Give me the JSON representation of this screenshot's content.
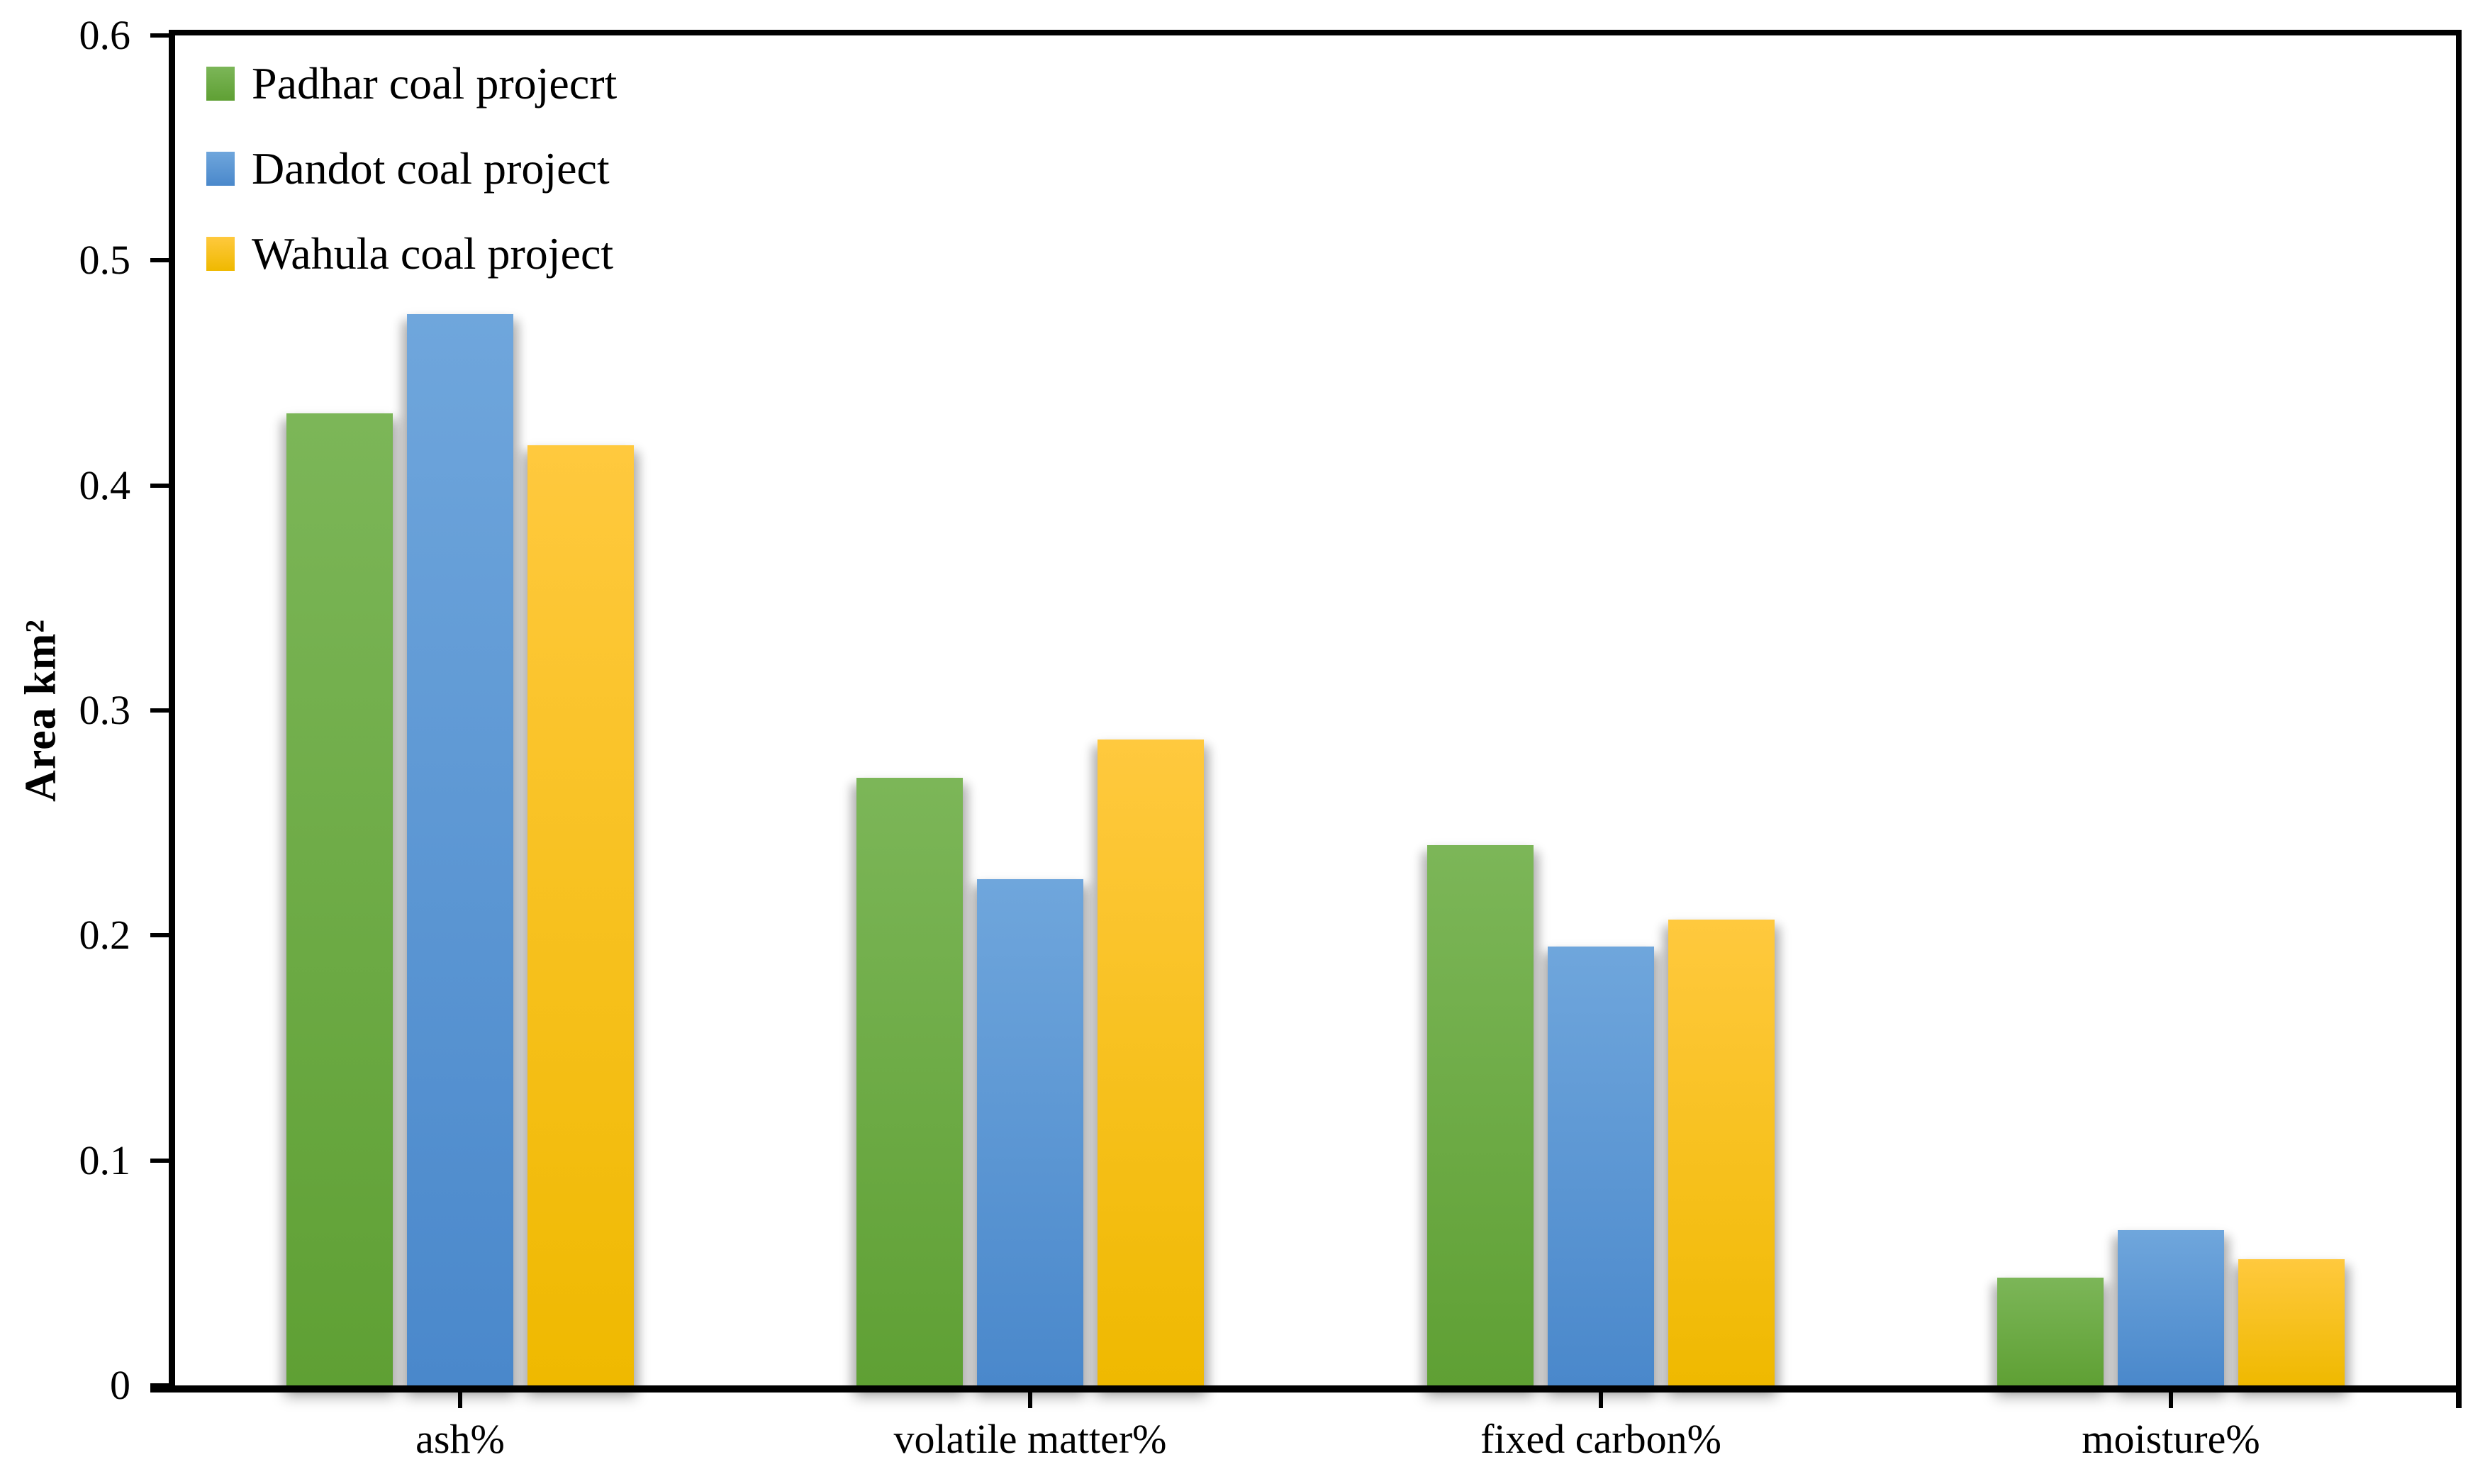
{
  "chart_data": {
    "type": "bar",
    "title": "",
    "xlabel": "",
    "ylabel": "Area km²",
    "ylim": [
      0,
      0.6
    ],
    "yticks": [
      0,
      0.1,
      0.2,
      0.3,
      0.4,
      0.5,
      0.6
    ],
    "ytick_labels": [
      "0",
      "0.1",
      "0.2",
      "0.3",
      "0.4",
      "0.5",
      "0.6"
    ],
    "categories": [
      "ash%",
      "volatile matter%",
      "fixed carbon%",
      "moisture%"
    ],
    "series": [
      {
        "name": "Padhar coal projecrt",
        "color": "#6fae49",
        "color_top": "#7cb658",
        "color_bottom": "#5fa034",
        "values": [
          0.432,
          0.27,
          0.24,
          0.048
        ]
      },
      {
        "name": "Dandot coal project",
        "color": "#5b9bd5",
        "color_top": "#6fa6dc",
        "color_bottom": "#4a88cb",
        "values": [
          0.476,
          0.225,
          0.195,
          0.069
        ]
      },
      {
        "name": "Wahula coal project",
        "color": "#ffc021",
        "color_top": "#ffc93e",
        "color_bottom": "#efb900",
        "values": [
          0.418,
          0.287,
          0.207,
          0.056
        ]
      }
    ],
    "legend_position": "top-left",
    "grid": false
  }
}
